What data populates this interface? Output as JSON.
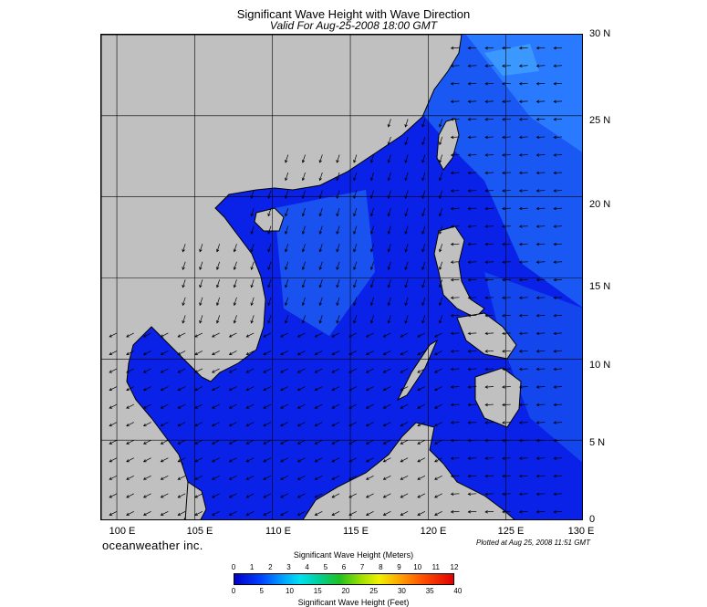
{
  "title": "Significant Wave Height with Wave Direction",
  "subtitle": "Valid For Aug-25-2008 18:00 GMT",
  "lat_labels": [
    "30 N",
    "25 N",
    "20 N",
    "15 N",
    "10 N",
    "5 N",
    "0"
  ],
  "lon_labels": [
    "100 E",
    "105 E",
    "110 E",
    "115 E",
    "120 E",
    "125 E",
    "130 E"
  ],
  "brand": "oceanweather inc.",
  "plotted": "Plotted at Aug 25, 2008 11:51 GMT",
  "colorbar": {
    "title_top": "Significant Wave Height (Meters)",
    "meters": [
      "0",
      "1",
      "2",
      "3",
      "4",
      "5",
      "6",
      "7",
      "8",
      "9",
      "10",
      "11",
      "12"
    ],
    "feet": [
      "0",
      "5",
      "10",
      "15",
      "20",
      "25",
      "30",
      "35",
      "40"
    ],
    "title_bottom": "Significant Wave Height (Feet)"
  },
  "colors": {
    "land": "#c0c0c0",
    "sea_deep": "#0a1ee6",
    "sea_mid": "#1448f0",
    "sea_high": "#1e6cff",
    "arrow": "#000000"
  },
  "map_extent": {
    "lon_min": 99,
    "lon_max": 130,
    "lat_min": 0,
    "lat_max": 30
  },
  "wave_direction": "westward to south-westward in the South China Sea, westward east of the Philippines"
}
